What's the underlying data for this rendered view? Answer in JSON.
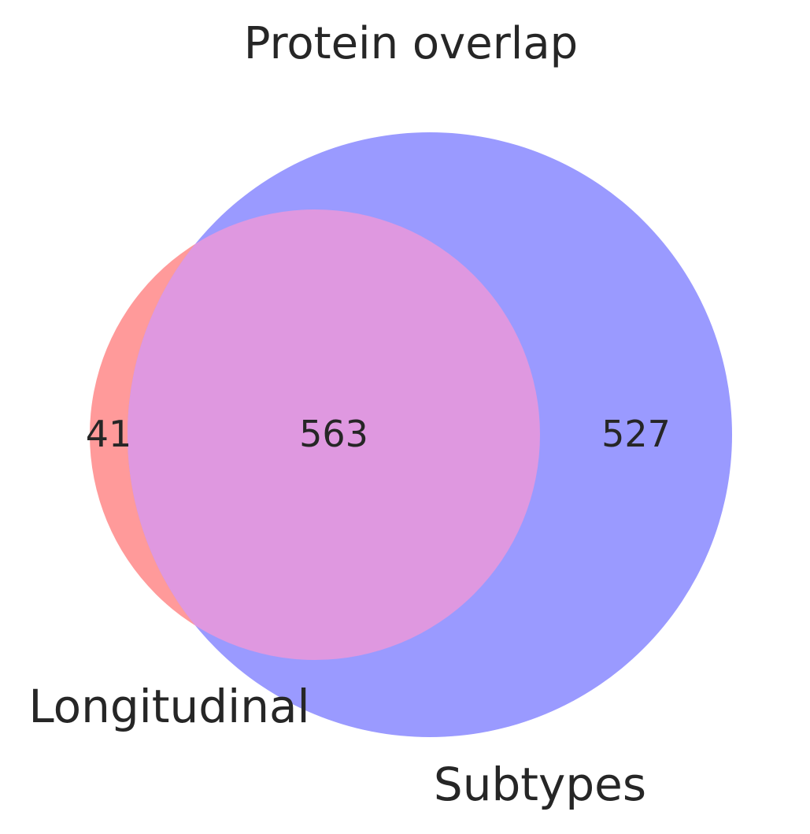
{
  "chart_data": {
    "type": "venn",
    "title": "Protein overlap",
    "sets": [
      {
        "name": "Longitudinal",
        "color": "#ff9a9a"
      },
      {
        "name": "Subtypes",
        "color": "#9a9aff"
      }
    ],
    "regions": {
      "only_a": 41,
      "only_b": 527,
      "both": 563
    },
    "intersection_color": "#df98e0"
  }
}
